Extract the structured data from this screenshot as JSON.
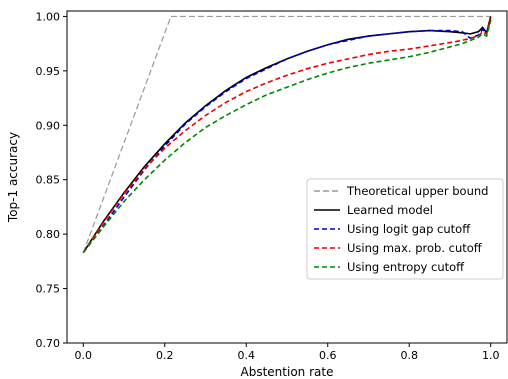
{
  "chart_data": {
    "type": "line",
    "title": "",
    "xlabel": "Abstention rate",
    "ylabel": "Top-1 accuracy",
    "xlim": [
      -0.04,
      1.04
    ],
    "ylim": [
      0.7,
      1.005
    ],
    "xticks": [
      0.0,
      0.2,
      0.4,
      0.6,
      0.8,
      1.0
    ],
    "xtick_labels": [
      "0.0",
      "0.2",
      "0.4",
      "0.6",
      "0.8",
      "1.0"
    ],
    "yticks": [
      0.7,
      0.75,
      0.8,
      0.85,
      0.9,
      0.95,
      1.0
    ],
    "ytick_labels": [
      "0.70",
      "0.75",
      "0.80",
      "0.85",
      "0.90",
      "0.95",
      "1.00"
    ],
    "grid": false,
    "legend_position": "lower-right",
    "series": [
      {
        "name": "Theoretical upper bound",
        "color": "#999999",
        "dash": "6,3",
        "x": [
          0.0,
          0.215,
          1.0
        ],
        "y": [
          0.783,
          1.0,
          1.0
        ]
      },
      {
        "name": "Learned model",
        "color": "#000000",
        "dash": "",
        "x": [
          0.0,
          0.05,
          0.1,
          0.15,
          0.2,
          0.25,
          0.3,
          0.35,
          0.4,
          0.45,
          0.5,
          0.55,
          0.6,
          0.65,
          0.7,
          0.75,
          0.8,
          0.85,
          0.9,
          0.93,
          0.95,
          0.97,
          0.98,
          0.99,
          1.0
        ],
        "y": [
          0.783,
          0.812,
          0.838,
          0.862,
          0.883,
          0.902,
          0.918,
          0.932,
          0.944,
          0.953,
          0.961,
          0.968,
          0.974,
          0.979,
          0.982,
          0.984,
          0.986,
          0.987,
          0.986,
          0.985,
          0.984,
          0.986,
          0.99,
          0.985,
          1.0
        ]
      },
      {
        "name": "Using logit gap cutoff",
        "color": "#0000cc",
        "dash": "5,3",
        "x": [
          0.0,
          0.05,
          0.1,
          0.15,
          0.2,
          0.25,
          0.3,
          0.35,
          0.4,
          0.45,
          0.5,
          0.55,
          0.6,
          0.65,
          0.7,
          0.75,
          0.8,
          0.85,
          0.9,
          0.93,
          0.95,
          0.97,
          0.98,
          0.99,
          1.0
        ],
        "y": [
          0.783,
          0.808,
          0.834,
          0.859,
          0.881,
          0.901,
          0.917,
          0.931,
          0.943,
          0.952,
          0.961,
          0.968,
          0.974,
          0.978,
          0.982,
          0.984,
          0.986,
          0.987,
          0.987,
          0.986,
          0.98,
          0.983,
          0.988,
          0.985,
          0.997
        ]
      },
      {
        "name": "Using max. prob. cutoff",
        "color": "#ee0000",
        "dash": "5,3",
        "x": [
          0.0,
          0.05,
          0.1,
          0.15,
          0.2,
          0.25,
          0.3,
          0.35,
          0.4,
          0.45,
          0.5,
          0.55,
          0.6,
          0.65,
          0.7,
          0.75,
          0.8,
          0.85,
          0.9,
          0.93,
          0.95,
          0.97,
          0.98,
          0.99,
          1.0
        ],
        "y": [
          0.783,
          0.811,
          0.837,
          0.86,
          0.879,
          0.895,
          0.909,
          0.921,
          0.931,
          0.939,
          0.946,
          0.952,
          0.957,
          0.961,
          0.965,
          0.968,
          0.97,
          0.973,
          0.976,
          0.978,
          0.98,
          0.982,
          0.986,
          0.984,
          0.998
        ]
      },
      {
        "name": "Using entropy cutoff",
        "color": "#008800",
        "dash": "5,3",
        "x": [
          0.0,
          0.05,
          0.1,
          0.15,
          0.2,
          0.25,
          0.3,
          0.35,
          0.4,
          0.45,
          0.5,
          0.55,
          0.6,
          0.65,
          0.7,
          0.75,
          0.8,
          0.85,
          0.9,
          0.93,
          0.95,
          0.97,
          0.98,
          0.99,
          1.0
        ],
        "y": [
          0.783,
          0.807,
          0.83,
          0.85,
          0.868,
          0.884,
          0.898,
          0.909,
          0.919,
          0.928,
          0.935,
          0.942,
          0.948,
          0.953,
          0.957,
          0.96,
          0.963,
          0.967,
          0.972,
          0.975,
          0.978,
          0.981,
          0.984,
          0.982,
          0.996
        ]
      }
    ]
  }
}
